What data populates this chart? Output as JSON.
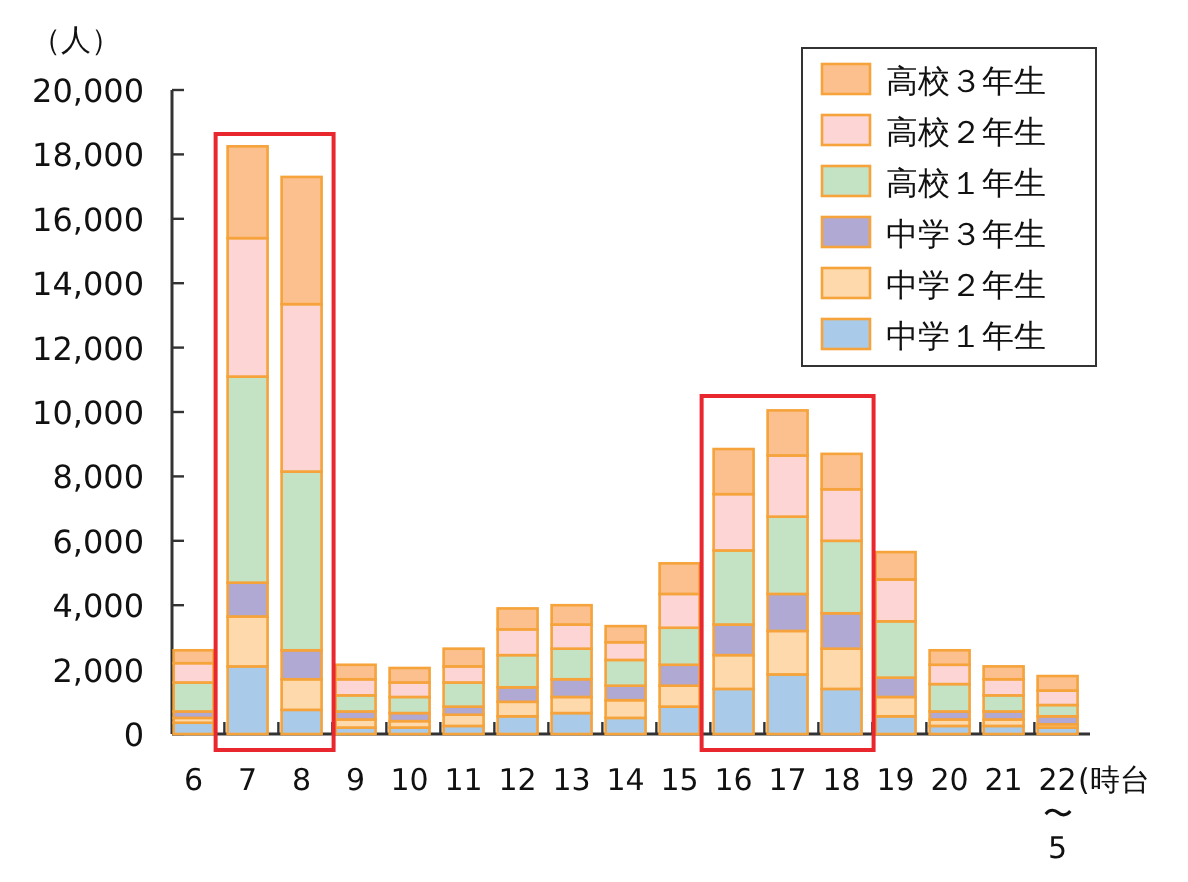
{
  "chart_data": {
    "type": "bar",
    "stacked": true,
    "ylabel": "（人）",
    "xlabel": "(時台",
    "categories": [
      "6",
      "7",
      "8",
      "9",
      "10",
      "11",
      "12",
      "13",
      "14",
      "15",
      "16",
      "17",
      "18",
      "19",
      "20",
      "21",
      "22\n〜\n5"
    ],
    "series": [
      {
        "name": "中学１年生",
        "color": "#a9cbe9",
        "values": [
          350,
          2100,
          750,
          200,
          200,
          250,
          550,
          650,
          500,
          850,
          1400,
          1850,
          1400,
          550,
          250,
          250,
          200
        ]
      },
      {
        "name": "中学２年生",
        "color": "#fdd9ab",
        "values": [
          150,
          1550,
          950,
          250,
          200,
          350,
          450,
          500,
          550,
          650,
          1050,
          1350,
          1250,
          600,
          200,
          200,
          100
        ]
      },
      {
        "name": "中学３年生",
        "color": "#b0a9d4",
        "values": [
          200,
          1050,
          900,
          250,
          250,
          250,
          450,
          550,
          450,
          650,
          950,
          1150,
          1100,
          600,
          250,
          250,
          250
        ]
      },
      {
        "name": "高校１年生",
        "color": "#c4e2c4",
        "values": [
          900,
          6400,
          5550,
          500,
          500,
          750,
          1000,
          950,
          800,
          1150,
          2300,
          2400,
          2250,
          1750,
          850,
          500,
          350
        ]
      },
      {
        "name": "高校２年生",
        "color": "#fdd5d5",
        "values": [
          600,
          4300,
          5200,
          500,
          450,
          500,
          800,
          750,
          550,
          1050,
          1750,
          1900,
          1600,
          1300,
          600,
          500,
          450
        ]
      },
      {
        "name": "高校３年生",
        "color": "#fcc08e",
        "values": [
          400,
          2850,
          3950,
          450,
          450,
          550,
          650,
          600,
          500,
          950,
          1400,
          1400,
          1100,
          850,
          450,
          400,
          450
        ]
      }
    ],
    "ylim": [
      0,
      20000
    ],
    "yticks": [
      {
        "value": 0,
        "label": "0"
      },
      {
        "value": 2000,
        "label": "2,000"
      },
      {
        "value": 4000,
        "label": "4,000"
      },
      {
        "value": 6000,
        "label": "6,000"
      },
      {
        "value": 8000,
        "label": "8,000"
      },
      {
        "value": 10000,
        "label": "10,000"
      },
      {
        "value": 12000,
        "label": "12,000"
      },
      {
        "value": 14000,
        "label": "14,000"
      },
      {
        "value": 16000,
        "label": "16,000"
      },
      {
        "value": 18000,
        "label": "18,000"
      },
      {
        "value": 20000,
        "label": "20,000"
      }
    ],
    "legend": "top right"
  }
}
